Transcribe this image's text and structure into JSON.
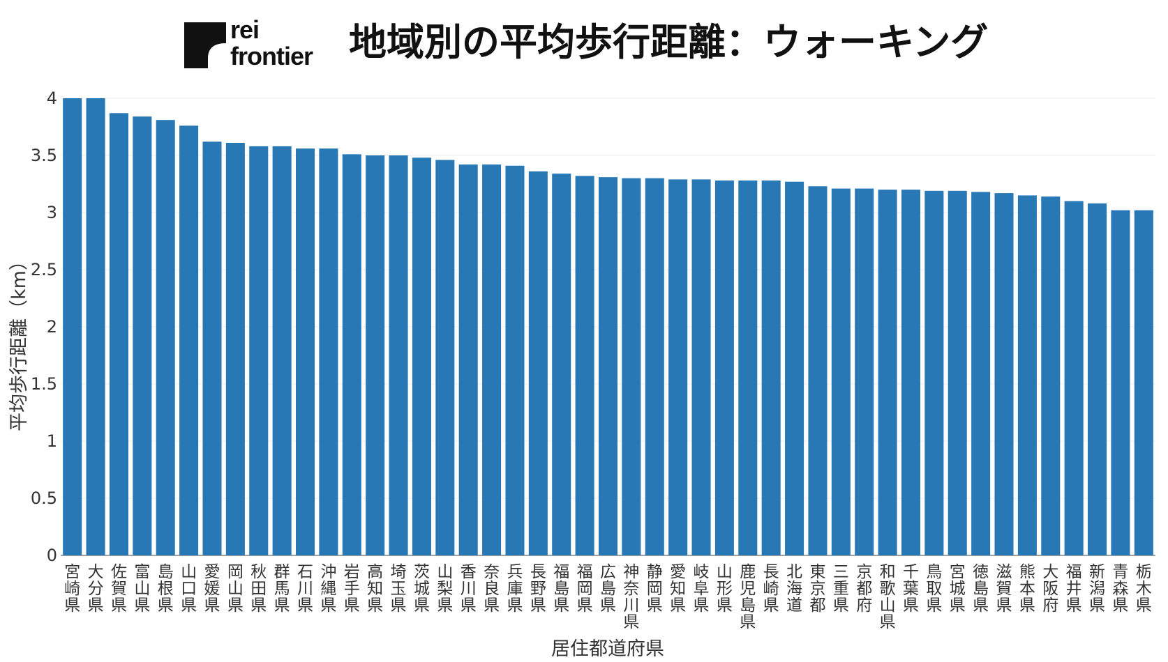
{
  "header": {
    "logo_line1": "rei",
    "logo_line2": "frontier",
    "title": "地域別の平均歩行距離：ウォーキング"
  },
  "chart_data": {
    "type": "bar",
    "title": "地域別の平均歩行距離：ウォーキング",
    "xlabel": "居住都道府県",
    "ylabel": "平均歩行距離（km）",
    "ylim": [
      0,
      4
    ],
    "yticks": [
      "0",
      "0.5",
      "1",
      "1.5",
      "2",
      "2.5",
      "3",
      "3.5",
      "4"
    ],
    "grid": "horizontal",
    "bar_color": "#2878b5",
    "categories": [
      "宮崎県",
      "大分県",
      "佐賀県",
      "富山県",
      "島根県",
      "山口県",
      "愛媛県",
      "岡山県",
      "秋田県",
      "群馬県",
      "石川県",
      "沖縄県",
      "岩手県",
      "高知県",
      "埼玉県",
      "茨城県",
      "山梨県",
      "香川県",
      "奈良県",
      "兵庫県",
      "長野県",
      "福島県",
      "福岡県",
      "広島県",
      "神奈川県",
      "静岡県",
      "愛知県",
      "岐阜県",
      "山形県",
      "鹿児島県",
      "長崎県",
      "北海道",
      "東京都",
      "三重県",
      "京都府",
      "和歌山県",
      "千葉県",
      "鳥取県",
      "宮城県",
      "徳島県",
      "滋賀県",
      "熊本県",
      "大阪府",
      "福井県",
      "新潟県",
      "青森県",
      "栃木県"
    ],
    "values": [
      4.0,
      4.0,
      3.87,
      3.84,
      3.81,
      3.76,
      3.62,
      3.61,
      3.58,
      3.58,
      3.56,
      3.56,
      3.51,
      3.5,
      3.5,
      3.48,
      3.46,
      3.42,
      3.42,
      3.41,
      3.36,
      3.34,
      3.32,
      3.31,
      3.3,
      3.3,
      3.29,
      3.29,
      3.28,
      3.28,
      3.28,
      3.27,
      3.23,
      3.21,
      3.21,
      3.2,
      3.2,
      3.19,
      3.19,
      3.18,
      3.17,
      3.15,
      3.14,
      3.1,
      3.08,
      3.02,
      3.02
    ]
  }
}
